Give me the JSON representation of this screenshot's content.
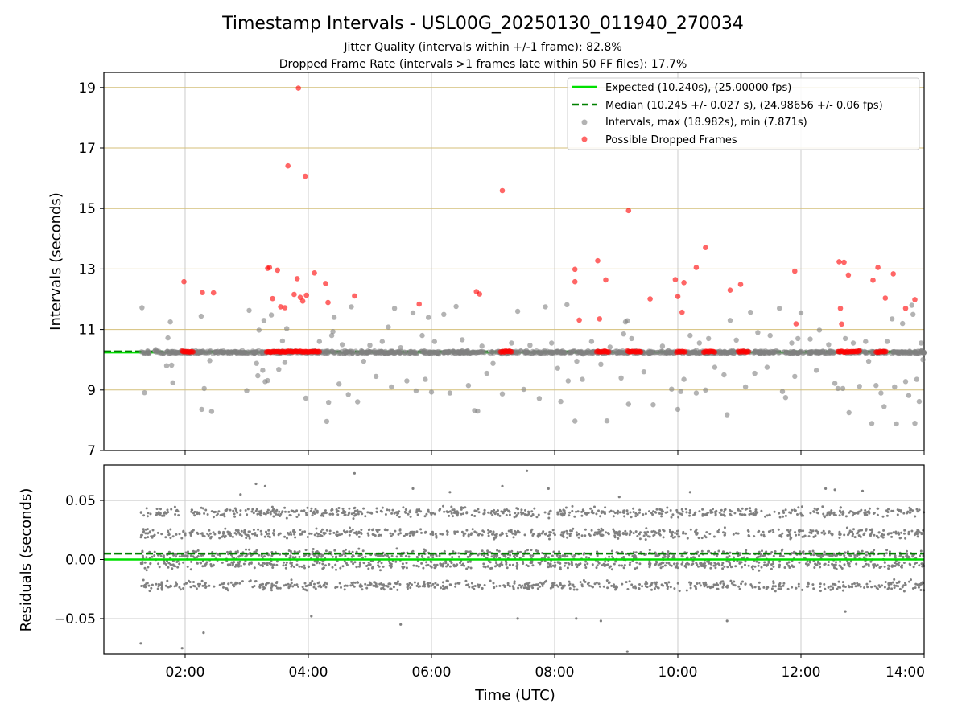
{
  "figure": {
    "title": "Timestamp Intervals - USL00G_20250130_011940_270034",
    "subtitle1": "Jitter Quality (intervals within +/-1 frame): 82.8%",
    "subtitle2": "Dropped Frame Rate (intervals >1 frames late within 50 FF files): 17.7%"
  },
  "colors": {
    "expected": "#00e000",
    "median": "#008000",
    "intervals": "#808080",
    "dropped": "#ff0000",
    "hgrid": "#d4bf7a",
    "vgrid": "#cccccc"
  },
  "chart_data": [
    {
      "type": "scatter",
      "panel": "top",
      "ylabel": "Intervals (seconds)",
      "xlabel": "",
      "x_unit": "hours (UTC)",
      "xlim": [
        0.68,
        14.0
      ],
      "ylim": [
        7,
        19.5
      ],
      "yticks": [
        7,
        9,
        11,
        13,
        15,
        17,
        19
      ],
      "xticks": [
        2,
        4,
        6,
        8,
        10,
        12,
        14
      ],
      "xtick_labels": [
        "02:00",
        "04:00",
        "06:00",
        "08:00",
        "10:00",
        "12:00",
        "14:00"
      ],
      "grid": true,
      "legend_position": "top-right",
      "legend": [
        "Expected (10.240s), (25.00000 fps)",
        "Median (10.245 +/- 0.027 s), (24.98656 +/- 0.06 fps)",
        "Intervals, max (18.982s), min (7.871s)",
        "Possible Dropped Frames"
      ],
      "expected_value": 10.24,
      "median_value": 10.245,
      "dropped_points": [
        [
          1.98,
          12.58
        ],
        [
          2.28,
          12.22
        ],
        [
          2.46,
          12.21
        ],
        [
          3.34,
          13.02
        ],
        [
          3.37,
          13.05
        ],
        [
          3.42,
          12.02
        ],
        [
          3.5,
          12.96
        ],
        [
          3.55,
          11.75
        ],
        [
          3.62,
          11.72
        ],
        [
          3.67,
          16.41
        ],
        [
          3.77,
          12.16
        ],
        [
          3.82,
          12.68
        ],
        [
          3.84,
          18.98
        ],
        [
          3.87,
          12.06
        ],
        [
          3.91,
          11.94
        ],
        [
          3.95,
          16.07
        ],
        [
          3.97,
          12.13
        ],
        [
          4.1,
          12.87
        ],
        [
          4.28,
          12.52
        ],
        [
          4.32,
          11.89
        ],
        [
          4.75,
          12.11
        ],
        [
          5.8,
          11.84
        ],
        [
          6.73,
          12.25
        ],
        [
          6.78,
          12.17
        ],
        [
          7.15,
          15.59
        ],
        [
          8.33,
          12.99
        ],
        [
          8.33,
          12.58
        ],
        [
          8.4,
          11.31
        ],
        [
          8.7,
          13.27
        ],
        [
          8.73,
          11.35
        ],
        [
          8.83,
          12.64
        ],
        [
          9.2,
          14.93
        ],
        [
          9.55,
          12.01
        ],
        [
          9.96,
          12.65
        ],
        [
          10.0,
          12.09
        ],
        [
          10.07,
          11.57
        ],
        [
          10.1,
          12.55
        ],
        [
          10.3,
          13.05
        ],
        [
          10.45,
          13.71
        ],
        [
          10.85,
          12.3
        ],
        [
          11.02,
          12.49
        ],
        [
          11.9,
          12.93
        ],
        [
          11.92,
          11.19
        ],
        [
          12.62,
          13.24
        ],
        [
          12.64,
          11.7
        ],
        [
          12.66,
          11.18
        ],
        [
          12.7,
          13.22
        ],
        [
          12.77,
          12.8
        ],
        [
          13.17,
          12.63
        ],
        [
          13.25,
          13.05
        ],
        [
          13.37,
          12.04
        ],
        [
          13.5,
          12.84
        ],
        [
          13.7,
          11.7
        ],
        [
          13.85,
          11.99
        ]
      ],
      "dropped_cluster_ranges": [
        [
          1.95,
          2.13
        ],
        [
          3.32,
          4.18
        ],
        [
          7.12,
          7.3
        ],
        [
          8.68,
          8.88
        ],
        [
          9.18,
          9.4
        ],
        [
          9.98,
          10.12
        ],
        [
          10.42,
          10.6
        ],
        [
          10.98,
          11.15
        ],
        [
          12.6,
          12.95
        ],
        [
          13.22,
          13.38
        ]
      ],
      "interval_outliers": [
        [
          1.3,
          11.72
        ],
        [
          1.34,
          8.91
        ],
        [
          1.52,
          10.34
        ],
        [
          1.72,
          10.72
        ],
        [
          1.76,
          11.25
        ],
        [
          1.78,
          9.82
        ],
        [
          1.8,
          9.24
        ],
        [
          1.7,
          9.8
        ],
        [
          2.27,
          8.36
        ],
        [
          2.31,
          9.05
        ],
        [
          2.43,
          8.29
        ],
        [
          2.26,
          11.44
        ],
        [
          2.4,
          9.97
        ],
        [
          3.04,
          11.63
        ],
        [
          3.0,
          8.98
        ],
        [
          3.18,
          9.47
        ],
        [
          3.26,
          9.65
        ],
        [
          3.16,
          9.88
        ],
        [
          3.3,
          9.28
        ],
        [
          3.34,
          9.31
        ],
        [
          3.2,
          10.98
        ],
        [
          3.28,
          11.3
        ],
        [
          3.4,
          11.48
        ],
        [
          3.52,
          9.68
        ],
        [
          3.58,
          10.62
        ],
        [
          3.62,
          9.91
        ],
        [
          3.65,
          11.03
        ],
        [
          3.96,
          8.73
        ],
        [
          4.3,
          7.96
        ],
        [
          4.33,
          8.59
        ],
        [
          4.18,
          10.6
        ],
        [
          4.38,
          10.8
        ],
        [
          4.4,
          10.93
        ],
        [
          4.42,
          11.4
        ],
        [
          4.5,
          9.2
        ],
        [
          4.55,
          10.5
        ],
        [
          4.65,
          8.85
        ],
        [
          4.7,
          11.75
        ],
        [
          4.8,
          8.61
        ],
        [
          4.9,
          9.95
        ],
        [
          5.0,
          10.48
        ],
        [
          5.1,
          9.45
        ],
        [
          5.2,
          10.6
        ],
        [
          5.3,
          11.08
        ],
        [
          5.35,
          9.1
        ],
        [
          5.4,
          11.7
        ],
        [
          5.5,
          10.4
        ],
        [
          5.6,
          9.3
        ],
        [
          5.7,
          11.55
        ],
        [
          5.75,
          8.97
        ],
        [
          5.85,
          10.8
        ],
        [
          5.9,
          9.35
        ],
        [
          5.95,
          11.4
        ],
        [
          6.0,
          8.93
        ],
        [
          6.05,
          10.6
        ],
        [
          6.2,
          11.5
        ],
        [
          6.3,
          8.9
        ],
        [
          6.4,
          11.76
        ],
        [
          6.5,
          10.66
        ],
        [
          6.6,
          9.15
        ],
        [
          6.7,
          8.32
        ],
        [
          6.75,
          8.3
        ],
        [
          6.82,
          10.45
        ],
        [
          6.9,
          9.55
        ],
        [
          7.0,
          9.88
        ],
        [
          7.15,
          8.87
        ],
        [
          7.3,
          10.55
        ],
        [
          7.4,
          11.6
        ],
        [
          7.5,
          9.02
        ],
        [
          7.6,
          10.48
        ],
        [
          7.75,
          8.72
        ],
        [
          7.85,
          11.75
        ],
        [
          7.95,
          10.55
        ],
        [
          8.05,
          9.72
        ],
        [
          8.1,
          8.62
        ],
        [
          8.2,
          11.82
        ],
        [
          8.22,
          9.3
        ],
        [
          8.33,
          7.97
        ],
        [
          8.36,
          9.95
        ],
        [
          8.45,
          9.35
        ],
        [
          8.6,
          10.6
        ],
        [
          8.75,
          9.85
        ],
        [
          8.85,
          7.98
        ],
        [
          8.9,
          10.42
        ],
        [
          9.08,
          9.4
        ],
        [
          9.12,
          10.85
        ],
        [
          9.15,
          11.25
        ],
        [
          9.18,
          11.29
        ],
        [
          9.2,
          8.53
        ],
        [
          9.25,
          10.7
        ],
        [
          9.45,
          9.6
        ],
        [
          9.6,
          8.51
        ],
        [
          9.75,
          10.45
        ],
        [
          9.9,
          9.03
        ],
        [
          10.0,
          8.36
        ],
        [
          10.05,
          8.95
        ],
        [
          10.1,
          9.35
        ],
        [
          10.2,
          10.8
        ],
        [
          10.3,
          8.9
        ],
        [
          10.35,
          10.55
        ],
        [
          10.45,
          9.0
        ],
        [
          10.5,
          10.7
        ],
        [
          10.6,
          9.75
        ],
        [
          10.75,
          9.5
        ],
        [
          10.8,
          8.18
        ],
        [
          10.85,
          11.3
        ],
        [
          10.95,
          10.65
        ],
        [
          11.1,
          9.1
        ],
        [
          11.18,
          11.57
        ],
        [
          11.25,
          9.55
        ],
        [
          11.3,
          10.9
        ],
        [
          11.45,
          9.75
        ],
        [
          11.5,
          10.8
        ],
        [
          11.65,
          11.7
        ],
        [
          11.7,
          8.95
        ],
        [
          11.75,
          8.75
        ],
        [
          11.85,
          10.55
        ],
        [
          11.9,
          9.45
        ],
        [
          11.95,
          10.7
        ],
        [
          12.0,
          11.55
        ],
        [
          12.15,
          10.68
        ],
        [
          12.25,
          9.65
        ],
        [
          12.3,
          10.98
        ],
        [
          12.45,
          10.5
        ],
        [
          12.55,
          9.22
        ],
        [
          12.6,
          9.05
        ],
        [
          12.68,
          9.05
        ],
        [
          12.72,
          10.7
        ],
        [
          12.78,
          8.25
        ],
        [
          12.85,
          10.55
        ],
        [
          12.95,
          9.12
        ],
        [
          13.05,
          10.6
        ],
        [
          13.1,
          9.95
        ],
        [
          13.15,
          7.89
        ],
        [
          13.22,
          9.15
        ],
        [
          13.3,
          8.9
        ],
        [
          13.35,
          8.45
        ],
        [
          13.4,
          10.6
        ],
        [
          13.48,
          11.35
        ],
        [
          13.52,
          9.1
        ],
        [
          13.55,
          7.88
        ],
        [
          13.65,
          11.2
        ],
        [
          13.7,
          9.28
        ],
        [
          13.75,
          8.82
        ],
        [
          13.8,
          11.8
        ],
        [
          13.82,
          11.5
        ],
        [
          13.85,
          7.9
        ],
        [
          13.88,
          9.35
        ],
        [
          13.92,
          8.62
        ],
        [
          13.95,
          10.55
        ],
        [
          13.98,
          10.0
        ]
      ]
    },
    {
      "type": "scatter",
      "panel": "bottom",
      "ylabel": "Residuals (seconds)",
      "xlabel": "Time (UTC)",
      "x_unit": "hours (UTC)",
      "xlim": [
        0.68,
        14.0
      ],
      "ylim": [
        -0.08,
        0.08
      ],
      "yticks": [
        -0.05,
        0.0,
        0.05
      ],
      "ytick_labels": [
        "−0.05",
        "0.00",
        "0.05"
      ],
      "xticks": [
        2,
        4,
        6,
        8,
        10,
        12,
        14
      ],
      "xtick_labels": [
        "02:00",
        "04:00",
        "06:00",
        "08:00",
        "10:00",
        "12:00",
        "14:00"
      ],
      "grid": true,
      "expected_value": 0.0,
      "median_value": 0.005,
      "residual_x_range": [
        1.28,
        14.0
      ],
      "residual_bands": [
        -0.022,
        -0.004,
        0.004,
        0.022,
        0.04
      ],
      "residual_outliers": [
        [
          1.28,
          -0.071
        ],
        [
          1.95,
          -0.075
        ],
        [
          2.3,
          -0.062
        ],
        [
          2.9,
          0.055
        ],
        [
          3.15,
          0.064
        ],
        [
          3.3,
          0.062
        ],
        [
          4.05,
          -0.048
        ],
        [
          4.75,
          0.073
        ],
        [
          5.5,
          -0.055
        ],
        [
          5.7,
          0.06
        ],
        [
          6.3,
          0.057
        ],
        [
          7.15,
          0.062
        ],
        [
          7.4,
          -0.05
        ],
        [
          7.55,
          0.075
        ],
        [
          7.9,
          0.06
        ],
        [
          8.35,
          -0.05
        ],
        [
          8.75,
          -0.052
        ],
        [
          9.05,
          0.053
        ],
        [
          9.18,
          -0.078
        ],
        [
          10.2,
          0.057
        ],
        [
          10.8,
          -0.052
        ],
        [
          12.4,
          0.06
        ],
        [
          12.55,
          0.059
        ],
        [
          12.72,
          -0.044
        ],
        [
          13.0,
          0.058
        ]
      ]
    }
  ]
}
